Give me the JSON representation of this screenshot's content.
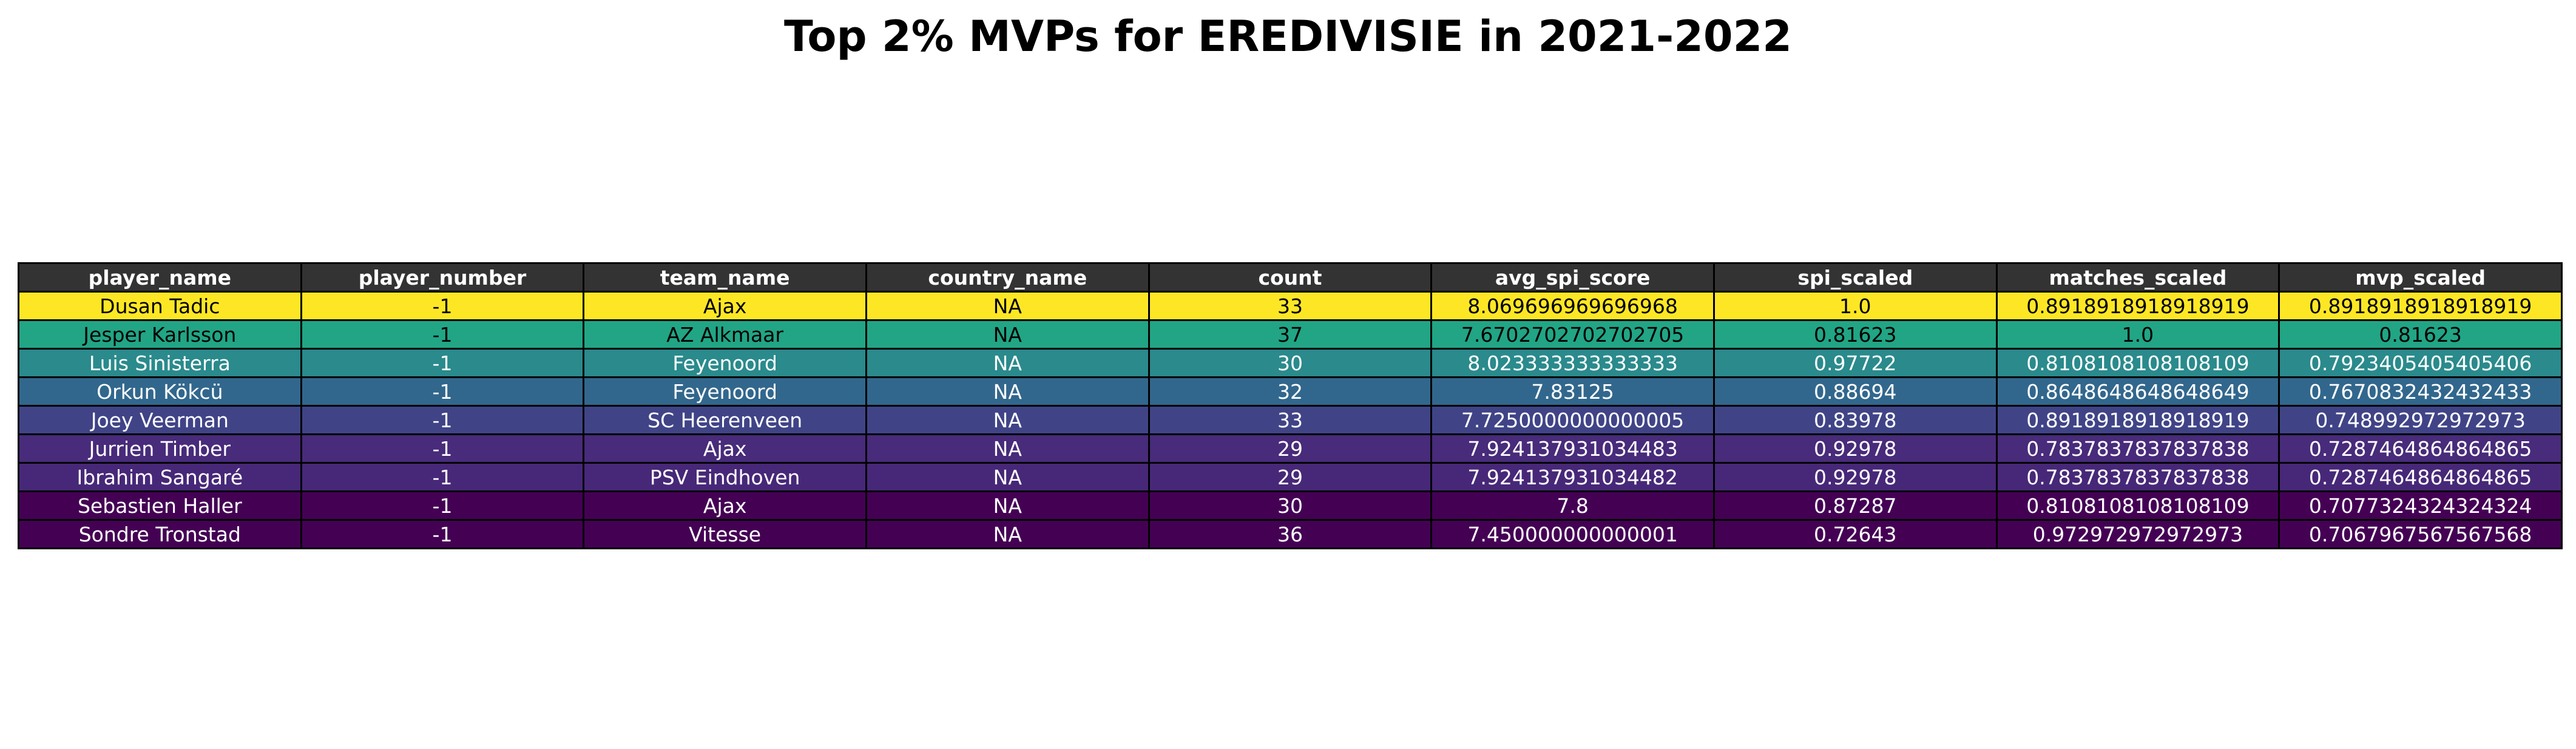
{
  "title": "Top 2% MVPs for EREDIVISIE in 2021-2022",
  "chart_data": {
    "type": "table",
    "title": "Top 2% MVPs for EREDIVISIE in 2021-2022",
    "columns": [
      "player_name",
      "player_number",
      "team_name",
      "country_name",
      "count",
      "avg_spi_score",
      "spi_scaled",
      "matches_scaled",
      "mvp_scaled"
    ],
    "rows": [
      [
        "Dusan Tadic",
        "-1",
        "Ajax",
        "NA",
        "33",
        "8.069696969696968",
        "1.0",
        "0.8918918918918919",
        "0.8918918918918919"
      ],
      [
        "Jesper Karlsson",
        "-1",
        "AZ Alkmaar",
        "NA",
        "37",
        "7.6702702702702705",
        "0.81623",
        "1.0",
        "0.81623"
      ],
      [
        "Luis Sinisterra",
        "-1",
        "Feyenoord",
        "NA",
        "30",
        "8.023333333333333",
        "0.97722",
        "0.8108108108108109",
        "0.7923405405405406"
      ],
      [
        "Orkun Kökcü",
        "-1",
        "Feyenoord",
        "NA",
        "32",
        "7.83125",
        "0.88694",
        "0.8648648648648649",
        "0.7670832432432433"
      ],
      [
        "Joey Veerman",
        "-1",
        "SC Heerenveen",
        "NA",
        "33",
        "7.7250000000000005",
        "0.83978",
        "0.8918918918918919",
        "0.748992972972973"
      ],
      [
        "Jurrien Timber",
        "-1",
        "Ajax",
        "NA",
        "29",
        "7.924137931034483",
        "0.92978",
        "0.7837837837837838",
        "0.7287464864864865"
      ],
      [
        "Ibrahim Sangaré",
        "-1",
        "PSV Eindhoven",
        "NA",
        "29",
        "7.924137931034482",
        "0.92978",
        "0.7837837837837838",
        "0.7287464864864865"
      ],
      [
        "Sebastien Haller",
        "-1",
        "Ajax",
        "NA",
        "30",
        "7.8",
        "0.87287",
        "0.8108108108108109",
        "0.7077324324324324"
      ],
      [
        "Sondre Tronstad",
        "-1",
        "Vitesse",
        "NA",
        "36",
        "7.450000000000001",
        "0.72643",
        "0.972972972972973",
        "0.7067967567567568"
      ]
    ],
    "row_colors": [
      "#fde725",
      "#21a585",
      "#2a8a8c",
      "#32678d",
      "#404487",
      "#482b7a",
      "#472878",
      "#440154",
      "#440154"
    ],
    "row_text_colors": [
      "#000000",
      "#000000",
      "#ffffff",
      "#ffffff",
      "#ffffff",
      "#ffffff",
      "#ffffff",
      "#ffffff",
      "#ffffff"
    ],
    "header_color": "#333333",
    "header_text_color": "#ffffff"
  }
}
